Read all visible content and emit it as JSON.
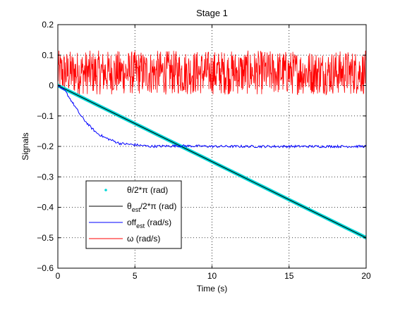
{
  "chart_data": {
    "type": "line",
    "title": "Stage 1",
    "xlabel": "Time (s)",
    "ylabel": "Signals",
    "xlim": [
      0,
      20
    ],
    "ylim": [
      -0.6,
      0.2
    ],
    "xticks": [
      0,
      5,
      10,
      15,
      20
    ],
    "yticks": [
      -0.6,
      -0.5,
      -0.4,
      -0.3,
      -0.2,
      -0.1,
      0,
      0.1,
      0.2
    ],
    "xtick_labels": [
      "0",
      "5",
      "10",
      "15",
      "20"
    ],
    "ytick_labels": [
      "−0.6",
      "−0.5",
      "−0.4",
      "−0.3",
      "−0.2",
      "−0.1",
      "0",
      "0.1",
      "0.2"
    ],
    "grid": true,
    "legend_position": "lower-left",
    "series": [
      {
        "key": "theta",
        "legend_main": "θ/2*π (rad)",
        "legend_sub": "",
        "legend_tail": "",
        "color": "#00d8d8",
        "style": "markers",
        "x": [
          0,
          2,
          4,
          6,
          8,
          10,
          12,
          14,
          16,
          18,
          20
        ],
        "y": [
          0,
          -0.05,
          -0.1,
          -0.15,
          -0.2,
          -0.25,
          -0.3,
          -0.35,
          -0.4,
          -0.45,
          -0.5
        ]
      },
      {
        "key": "theta_est",
        "legend_main": "θ",
        "legend_sub": "est",
        "legend_tail": "/2*π (rad)",
        "color": "#000000",
        "style": "line",
        "x": [
          0,
          2,
          4,
          6,
          8,
          10,
          12,
          14,
          16,
          18,
          20
        ],
        "y": [
          0,
          -0.05,
          -0.1,
          -0.15,
          -0.2,
          -0.25,
          -0.3,
          -0.35,
          -0.4,
          -0.45,
          -0.5
        ]
      },
      {
        "key": "off_est",
        "legend_main": "off",
        "legend_sub": "est",
        "legend_tail": " (rad/s)",
        "color": "#0000ff",
        "style": "noisy-line",
        "x": [
          0,
          0.5,
          1,
          1.5,
          2,
          2.5,
          3,
          3.5,
          4,
          5,
          6,
          8,
          10,
          12,
          14,
          16,
          18,
          20
        ],
        "y": [
          0,
          -0.02,
          -0.06,
          -0.1,
          -0.13,
          -0.155,
          -0.17,
          -0.18,
          -0.19,
          -0.195,
          -0.2,
          -0.198,
          -0.2,
          -0.2,
          -0.2,
          -0.2,
          -0.2,
          -0.2
        ]
      },
      {
        "key": "omega",
        "legend_main": "ω (rad/s)",
        "legend_sub": "",
        "legend_tail": "",
        "color": "#ff0000",
        "style": "noise-band",
        "x": [
          0,
          20
        ],
        "y_center": 0.04,
        "y_min": -0.03,
        "y_max": 0.115
      }
    ]
  }
}
